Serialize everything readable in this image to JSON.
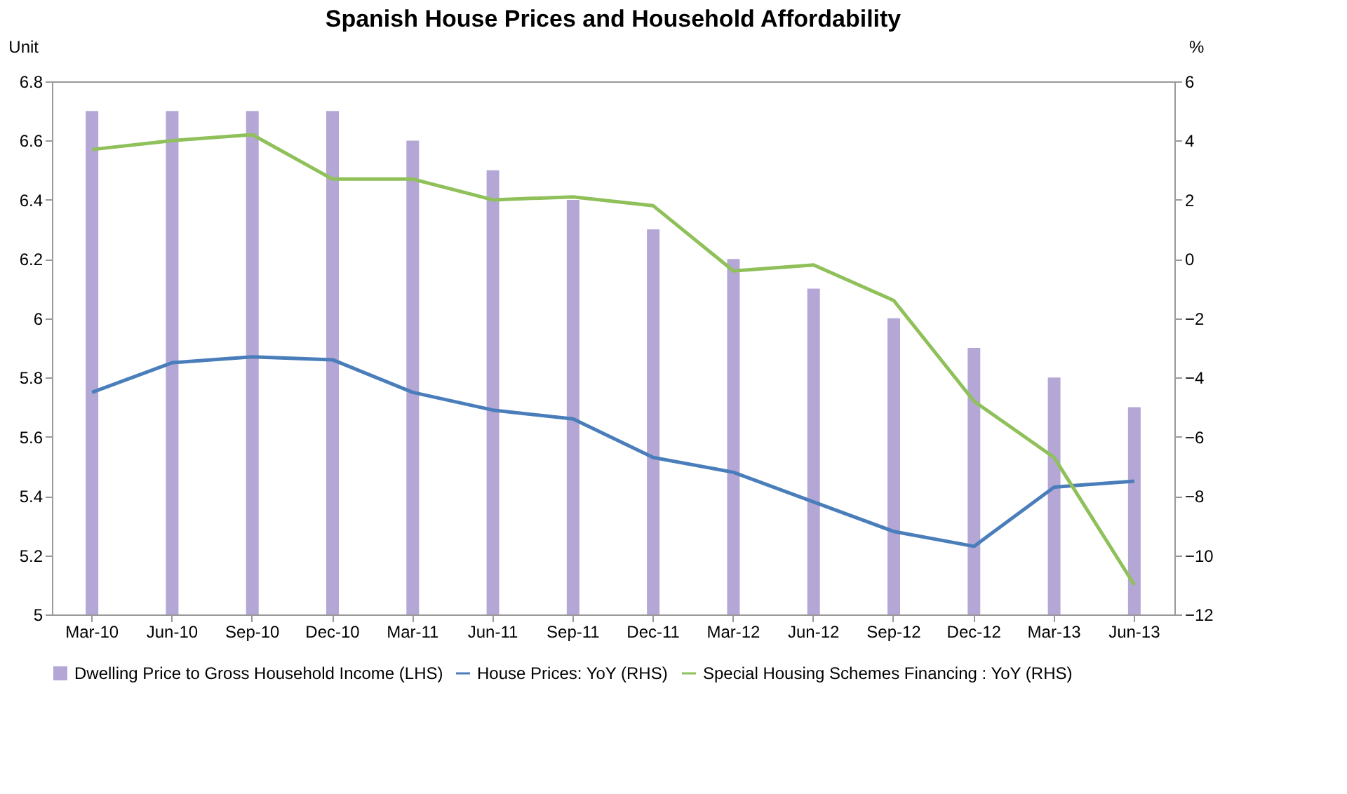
{
  "chart_data": {
    "type": "bar",
    "title": "Spanish House Prices and Household Affordability",
    "ylabel": "Unit",
    "y2label": "%",
    "categories": [
      "Mar-10",
      "Jun-10",
      "Sep-10",
      "Dec-10",
      "Mar-11",
      "Jun-11",
      "Sep-11",
      "Dec-11",
      "Mar-12",
      "Jun-12",
      "Sep-12",
      "Dec-12",
      "Mar-13",
      "Jun-13"
    ],
    "series": [
      {
        "name": "Dwelling Price to Gross Household Income (LHS)",
        "color": "#b4a7d6",
        "values": [
          6.7,
          6.7,
          6.7,
          6.7,
          6.6,
          6.5,
          6.4,
          6.3,
          6.2,
          6.1,
          6.0,
          5.9,
          5.8,
          5.7
        ]
      },
      {
        "name": "House Prices: YoY (RHS)",
        "type": "line",
        "axis": "y2",
        "color": "#4a7ebb",
        "values": [
          -4.5,
          -3.5,
          -3.3,
          -3.4,
          -4.5,
          -5.1,
          -5.4,
          -6.7,
          -7.2,
          -8.2,
          -9.2,
          -9.7,
          -7.7,
          -7.5
        ]
      },
      {
        "name": "Special Housing Schemes Financing : YoY (RHS)",
        "type": "line",
        "axis": "y2",
        "color": "#8fc05a",
        "values": [
          3.7,
          4.0,
          4.2,
          2.7,
          2.7,
          2.0,
          2.1,
          1.8,
          -0.4,
          -0.2,
          -1.4,
          -4.8,
          -6.7,
          -11.0
        ]
      }
    ],
    "ylim": [
      5,
      6.8
    ],
    "yticks": [
      5,
      5.2,
      5.4,
      5.6,
      5.8,
      6,
      6.2,
      6.4,
      6.6,
      6.8
    ],
    "y2lim": [
      -12,
      6
    ],
    "y2ticks": [
      -12,
      -10,
      -8,
      -6,
      -4,
      -2,
      0,
      2,
      4,
      6
    ],
    "grid": false,
    "legend": "bottom"
  }
}
